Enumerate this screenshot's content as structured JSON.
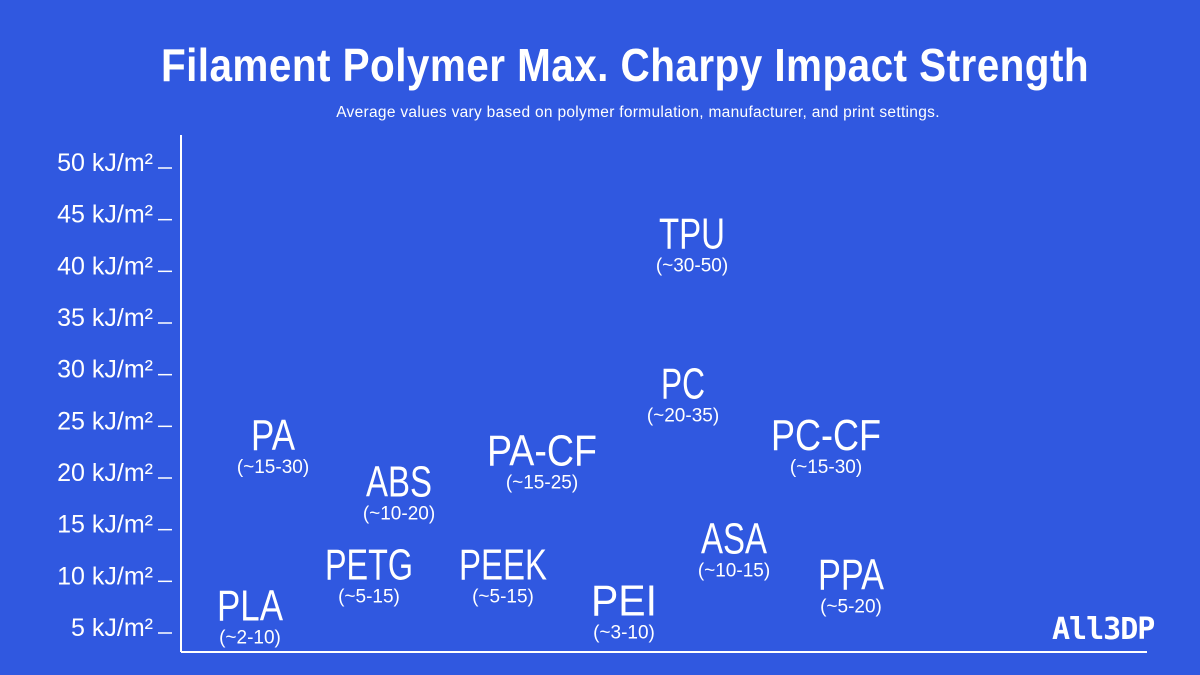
{
  "chart_data": {
    "type": "scatter",
    "title": "Filament Polymer Max. Charpy Impact Strength",
    "subtitle": "Average values vary based on polymer formulation, manufacturer, and print settings.",
    "y_unit": "kJ/m²",
    "yticks": [
      5,
      10,
      15,
      20,
      25,
      30,
      35,
      40,
      45,
      50
    ],
    "ytick_labels": [
      "5 kJ/m²",
      "10 kJ/m²",
      "15 kJ/m²",
      "20 kJ/m²",
      "25 kJ/m²",
      "30 kJ/m²",
      "35 kJ/m²",
      "40 kJ/m²",
      "45 kJ/m²",
      "50 kJ/m²"
    ],
    "ylim": [
      3,
      53
    ],
    "grid": false,
    "points": [
      {
        "name": "PLA",
        "range": "(~2-10)",
        "y": 6
      },
      {
        "name": "PA",
        "range": "(~15-30)",
        "y": 22.5
      },
      {
        "name": "PETG",
        "range": "(~5-15)",
        "y": 10
      },
      {
        "name": "ABS",
        "range": "(~10-20)",
        "y": 18
      },
      {
        "name": "PEEK",
        "range": "(~5-15)",
        "y": 10
      },
      {
        "name": "PA-CF",
        "range": "(~15-25)",
        "y": 21
      },
      {
        "name": "PEI",
        "range": "(~3-10)",
        "y": 6.5
      },
      {
        "name": "TPU",
        "range": "(~30-50)",
        "y": 42
      },
      {
        "name": "PC",
        "range": "(~20-35)",
        "y": 27.5
      },
      {
        "name": "ASA",
        "range": "(~10-15)",
        "y": 12.5
      },
      {
        "name": "PC-CF",
        "range": "(~15-30)",
        "y": 22.5
      },
      {
        "name": "PPA",
        "range": "(~5-20)",
        "y": 9
      }
    ]
  },
  "logo": {
    "text": "All3DP"
  }
}
